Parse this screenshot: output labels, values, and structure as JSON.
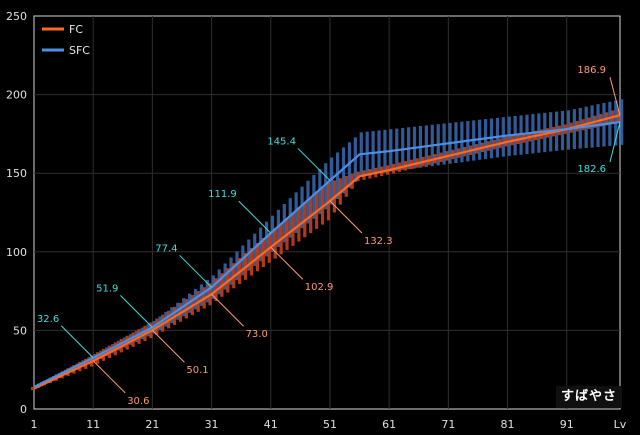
{
  "watermark": "すばやさ",
  "chart_data": {
    "type": "line",
    "xlabel": "Lv",
    "ylabel": "",
    "xlim": [
      1,
      100
    ],
    "ylim": [
      0,
      250
    ],
    "x_ticks": [
      "1",
      "11",
      "21",
      "31",
      "41",
      "51",
      "61",
      "71",
      "81",
      "91",
      "Lv"
    ],
    "y_ticks": [
      "0",
      "50",
      "100",
      "150",
      "200",
      "250"
    ],
    "grid": true,
    "legend_position": "top-left",
    "colors": {
      "FC": "#ff6a20",
      "SFC": "#4d8fe6",
      "fc_range": "#c8401a",
      "sfc_range": "#3565a8",
      "fc_label": "#ff9a70",
      "sfc_label": "#3be0e0"
    },
    "series": [
      {
        "name": "FC",
        "x": [
          1,
          11,
          21,
          31,
          41,
          51,
          56,
          61,
          71,
          81,
          91,
          100
        ],
        "y": [
          13,
          30.6,
          50.1,
          73.0,
          102.9,
          132.3,
          148,
          152,
          161,
          170,
          178,
          186.9
        ]
      },
      {
        "name": "SFC",
        "x": [
          1,
          11,
          21,
          31,
          41,
          51,
          56,
          61,
          71,
          81,
          91,
          100
        ],
        "y": [
          14,
          32.6,
          51.9,
          77.4,
          111.9,
          145.4,
          162,
          164,
          169,
          174,
          178,
          182.6
        ]
      }
    ],
    "range_bars": {
      "FC": {
        "x": [
          1,
          11,
          21,
          31,
          41,
          51,
          56,
          61,
          71,
          81,
          91,
          100
        ],
        "low": [
          12,
          27,
          45,
          66,
          93,
          120,
          145,
          149,
          158,
          167,
          175,
          182
        ],
        "high": [
          14,
          34,
          55,
          80,
          112,
          144,
          151,
          155,
          164,
          173,
          181,
          191
        ]
      },
      "SFC": {
        "x": [
          1,
          11,
          21,
          31,
          41,
          51,
          56,
          61,
          71,
          81,
          91,
          100
        ],
        "low": [
          13,
          30,
          48,
          70,
          100,
          130,
          148,
          151,
          156,
          161,
          165,
          168
        ],
        "high": [
          15,
          35,
          56,
          85,
          123,
          160,
          176,
          178,
          182,
          186,
          190,
          197
        ]
      }
    },
    "annotations": [
      {
        "series": "SFC",
        "x": 11,
        "y": 32.6,
        "text": "32.6"
      },
      {
        "series": "SFC",
        "x": 21,
        "y": 51.9,
        "text": "51.9"
      },
      {
        "series": "SFC",
        "x": 31,
        "y": 77.4,
        "text": "77.4"
      },
      {
        "series": "SFC",
        "x": 41,
        "y": 111.9,
        "text": "111.9"
      },
      {
        "series": "SFC",
        "x": 51,
        "y": 145.4,
        "text": "145.4"
      },
      {
        "series": "SFC",
        "x": 100,
        "y": 182.6,
        "text": "182.6"
      },
      {
        "series": "FC",
        "x": 11,
        "y": 30.6,
        "text": "30.6"
      },
      {
        "series": "FC",
        "x": 21,
        "y": 50.1,
        "text": "50.1"
      },
      {
        "series": "FC",
        "x": 31,
        "y": 73.0,
        "text": "73.0"
      },
      {
        "series": "FC",
        "x": 41,
        "y": 102.9,
        "text": "102.9"
      },
      {
        "series": "FC",
        "x": 51,
        "y": 132.3,
        "text": "132.3"
      },
      {
        "series": "FC",
        "x": 100,
        "y": 186.9,
        "text": "186.9"
      }
    ]
  }
}
